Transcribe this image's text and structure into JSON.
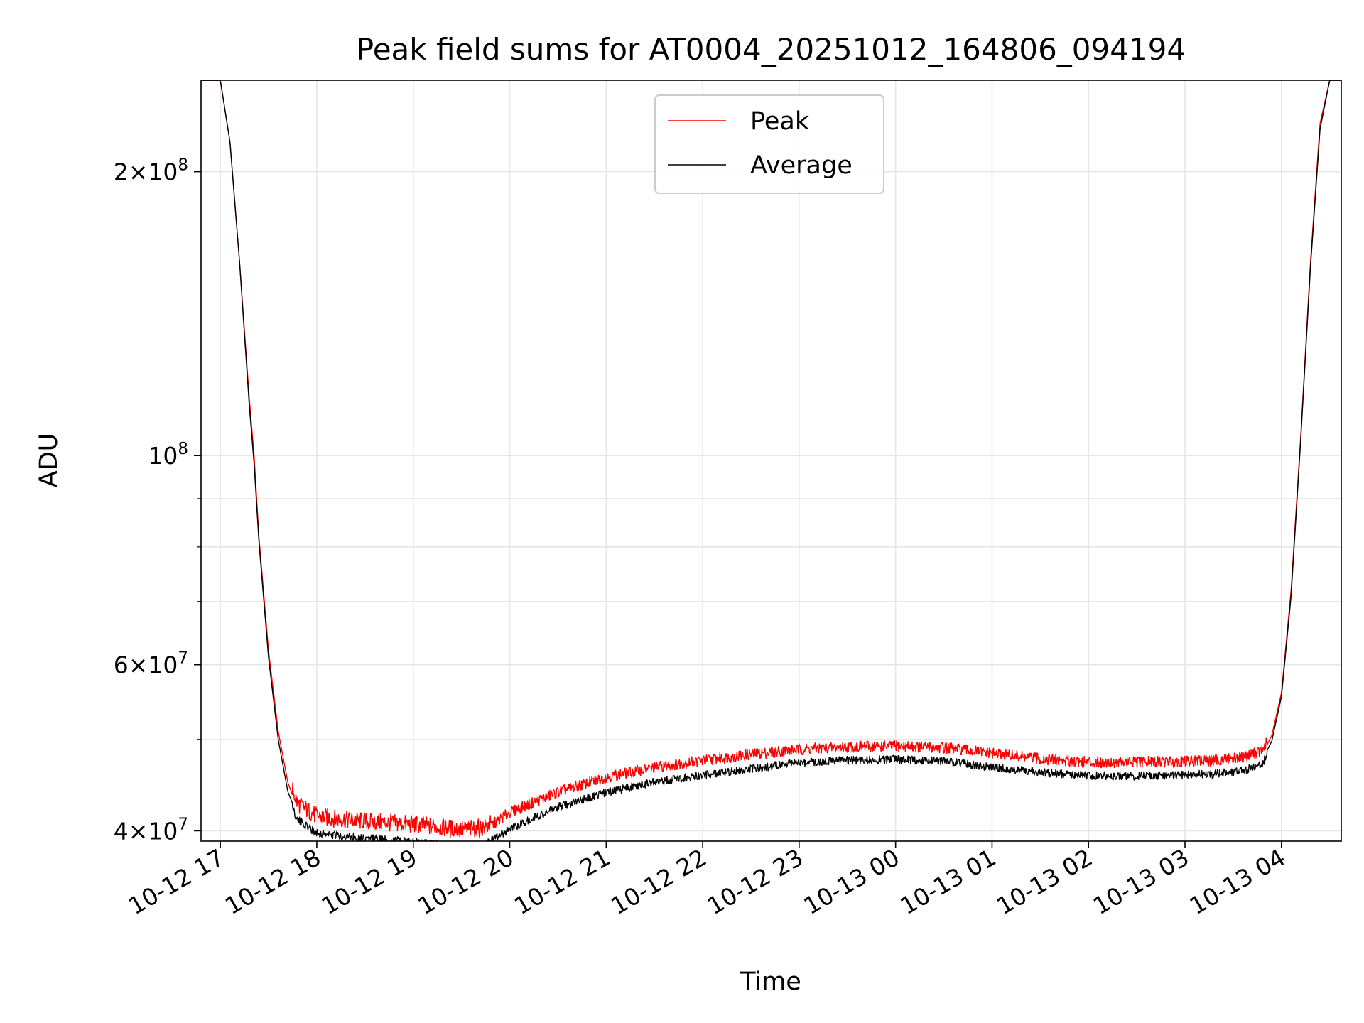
{
  "chart_data": {
    "type": "line",
    "title": "Peak field sums for AT0004_20251012_164806_094194",
    "xlabel": "Time",
    "ylabel": "ADU",
    "yscale": "log",
    "ylim": [
      39000000,
      250000000
    ],
    "xlim_hours": [
      16.8,
      28.62
    ],
    "grid": true,
    "legend": {
      "placement": "upper-center",
      "entries": [
        "Peak",
        "Average"
      ]
    },
    "x_ticks": [
      {
        "hour": 17,
        "label": "10-12 17"
      },
      {
        "hour": 18,
        "label": "10-12 18"
      },
      {
        "hour": 19,
        "label": "10-12 19"
      },
      {
        "hour": 20,
        "label": "10-12 20"
      },
      {
        "hour": 21,
        "label": "10-12 21"
      },
      {
        "hour": 22,
        "label": "10-12 22"
      },
      {
        "hour": 23,
        "label": "10-12 23"
      },
      {
        "hour": 24,
        "label": "10-13 00"
      },
      {
        "hour": 25,
        "label": "10-13 01"
      },
      {
        "hour": 26,
        "label": "10-13 02"
      },
      {
        "hour": 27,
        "label": "10-13 03"
      },
      {
        "hour": 28,
        "label": "10-13 04"
      }
    ],
    "y_major_ticks": [
      {
        "value": 40000000,
        "mant": "4",
        "exp": "7"
      },
      {
        "value": 60000000,
        "mant": "6",
        "exp": "7"
      },
      {
        "value": 100000000,
        "mant": "",
        "exp": "8"
      },
      {
        "value": 200000000,
        "mant": "2",
        "exp": "8"
      }
    ],
    "y_minor_ticks": [
      50000000,
      70000000,
      80000000,
      90000000
    ],
    "series": [
      {
        "name": "Peak",
        "color": "#ff0000",
        "x_hours": [
          16.8,
          17.0,
          17.1,
          17.2,
          17.3,
          17.35,
          17.4,
          17.5,
          17.6,
          17.7,
          17.8,
          18.0,
          18.25,
          18.5,
          19.0,
          19.5,
          19.75,
          20.0,
          20.5,
          21.0,
          21.5,
          22.0,
          22.5,
          23.0,
          23.5,
          24.0,
          24.5,
          25.0,
          25.5,
          26.0,
          26.5,
          27.0,
          27.3,
          27.6,
          27.8,
          27.9,
          28.0,
          28.1,
          28.2,
          28.3,
          28.4,
          28.5,
          28.62
        ],
        "values_adu": [
          250000000,
          250000000,
          215000000,
          160000000,
          115000000,
          100000000,
          82000000,
          62000000,
          51000000,
          45000000,
          42200000,
          40900000,
          40600000,
          40400000,
          40100000,
          39600000,
          39800000,
          41500000,
          43600000,
          45200000,
          46300000,
          47100000,
          47800000,
          48400000,
          48700000,
          48800000,
          48600000,
          47900000,
          47300000,
          46900000,
          46900000,
          47000000,
          47100000,
          47500000,
          48200000,
          50500000,
          56000000,
          72000000,
          105000000,
          160000000,
          225000000,
          250000000,
          250000000
        ]
      },
      {
        "name": "Average",
        "color": "#000000",
        "x_hours": [
          16.8,
          17.0,
          17.1,
          17.2,
          17.3,
          17.35,
          17.4,
          17.5,
          17.6,
          17.7,
          17.8,
          18.0,
          18.25,
          18.5,
          19.0,
          19.5,
          19.75,
          20.0,
          20.5,
          21.0,
          21.5,
          22.0,
          22.5,
          23.0,
          23.5,
          24.0,
          24.5,
          25.0,
          25.5,
          26.0,
          26.5,
          27.0,
          27.3,
          27.6,
          27.8,
          27.9,
          28.0,
          28.1,
          28.2,
          28.3,
          28.4,
          28.5,
          28.62
        ],
        "values_adu": [
          250000000,
          250000000,
          215000000,
          160000000,
          113000000,
          98000000,
          81000000,
          61000000,
          50000000,
          44000000,
          41500000,
          40200000,
          39900000,
          39700000,
          39300000,
          38900000,
          39100000,
          40600000,
          42800000,
          44400000,
          45500000,
          46300000,
          47000000,
          47700000,
          48000000,
          48100000,
          47900000,
          47200000,
          46600000,
          46200000,
          46200000,
          46300000,
          46400000,
          46800000,
          47500000,
          49800000,
          55500000,
          71000000,
          104000000,
          158000000,
          222000000,
          250000000,
          250000000
        ]
      }
    ]
  }
}
